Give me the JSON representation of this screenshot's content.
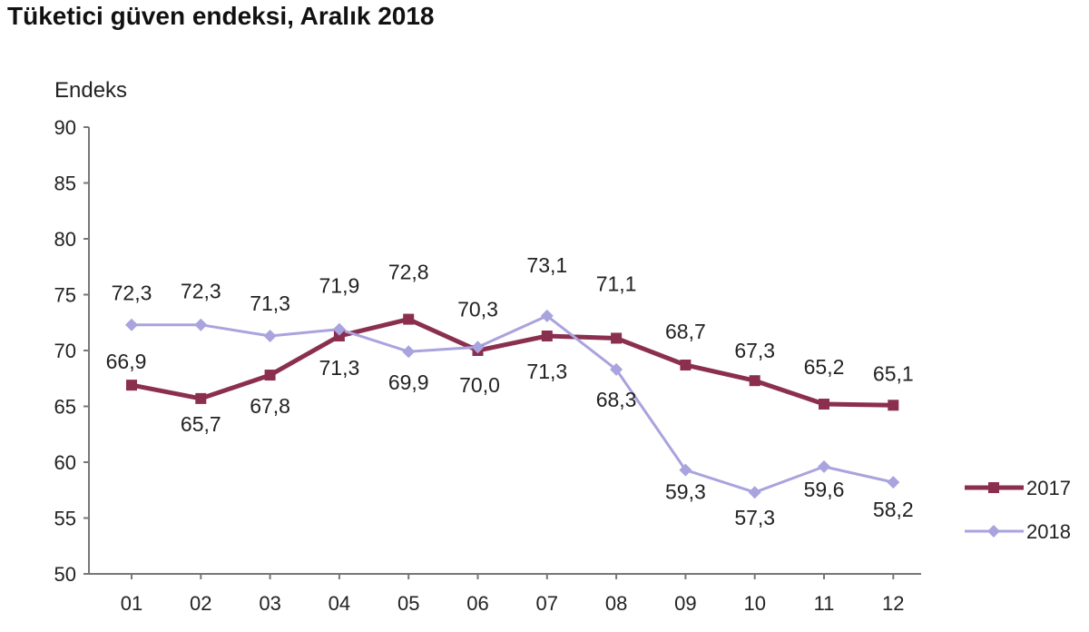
{
  "chart_data": {
    "type": "line",
    "title": "Tüketici güven endeksi, Aralık 2018",
    "ylabel": "Endeks",
    "xlabel": "",
    "categories": [
      "01",
      "02",
      "03",
      "04",
      "05",
      "06",
      "07",
      "08",
      "09",
      "10",
      "11",
      "12"
    ],
    "y_ticks": [
      "50",
      "55",
      "60",
      "65",
      "70",
      "75",
      "80",
      "85",
      "90"
    ],
    "ylim": [
      50,
      90
    ],
    "grid": false,
    "legend_position": "right",
    "series": [
      {
        "name": "2017",
        "color": "#8B2F4E",
        "marker": "square",
        "values": [
          66.9,
          65.7,
          67.8,
          71.3,
          72.8,
          70.0,
          71.3,
          71.1,
          68.7,
          67.3,
          65.2,
          65.1
        ],
        "labels": [
          "66,9",
          "65,7",
          "67,8",
          "71,3",
          "72,8",
          "70,0",
          "71,3",
          "71,1",
          "68,7",
          "67,3",
          "65,2",
          "65,1"
        ]
      },
      {
        "name": "2018",
        "color": "#A9A3DE",
        "marker": "diamond",
        "values": [
          72.3,
          72.3,
          71.3,
          71.9,
          69.9,
          70.3,
          73.1,
          68.3,
          59.3,
          57.3,
          59.6,
          58.2
        ],
        "labels": [
          "72,3",
          "72,3",
          "71,3",
          "71,9",
          "69,9",
          "70,3",
          "73,1",
          "68,3",
          "59,3",
          "57,3",
          "59,6",
          "58,2"
        ]
      }
    ]
  }
}
